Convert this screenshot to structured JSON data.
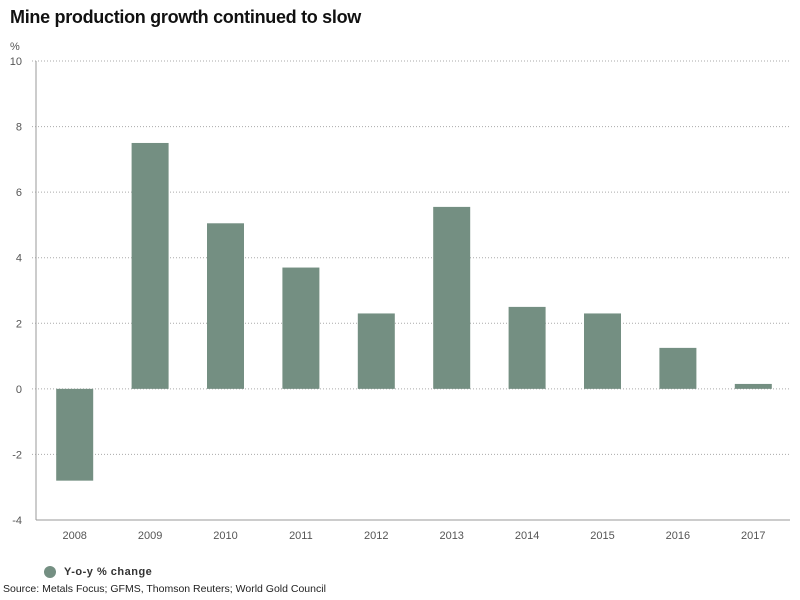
{
  "chart_data": {
    "type": "bar",
    "title": "Mine production growth continued to slow",
    "ylabel": "%",
    "xlabel": "",
    "categories": [
      "2008",
      "2009",
      "2010",
      "2011",
      "2012",
      "2013",
      "2014",
      "2015",
      "2016",
      "2017"
    ],
    "series": [
      {
        "name": "Y-o-y % change",
        "values": [
          -2.8,
          7.5,
          5.05,
          3.7,
          2.3,
          5.55,
          2.5,
          2.3,
          1.25,
          0.15
        ]
      }
    ],
    "ylim": [
      -4,
      10
    ],
    "yticks": [
      -4,
      -2,
      0,
      2,
      4,
      6,
      8,
      10
    ],
    "grid": true,
    "legend": "bottom-left",
    "bar_color": "#748f82"
  },
  "source": "Source: Metals Focus; GFMS, Thomson Reuters; World Gold Council"
}
